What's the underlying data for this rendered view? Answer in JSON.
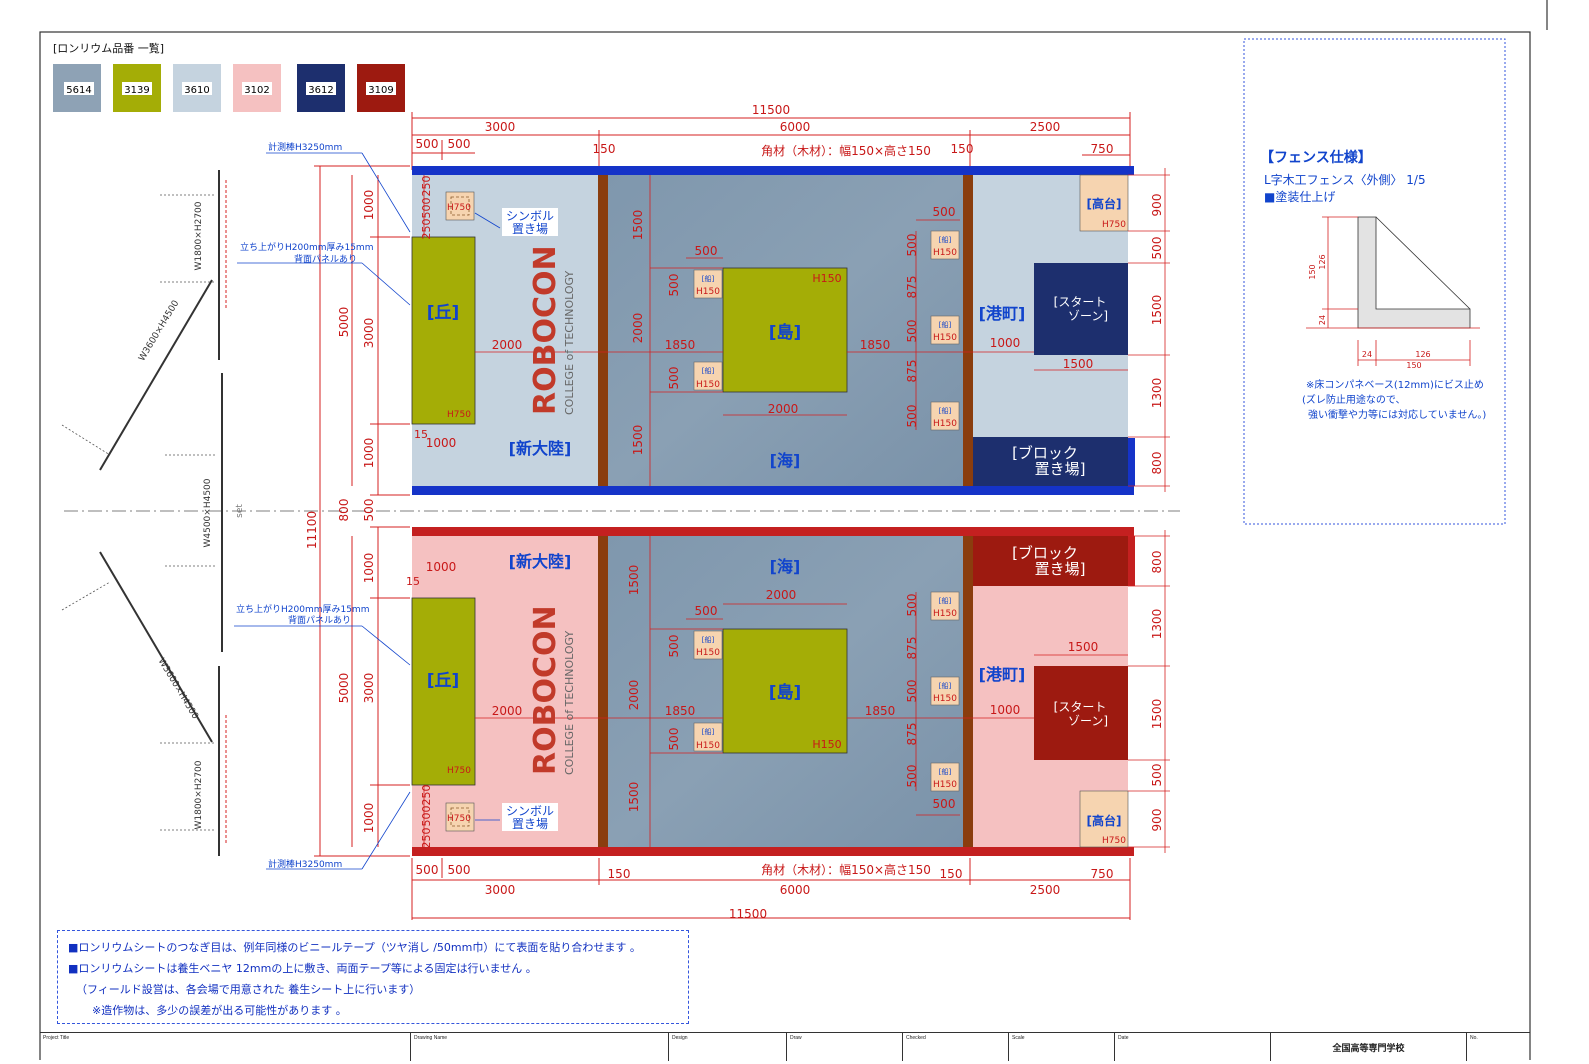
{
  "legend": {
    "title": "[ロンリウム品番 一覧]",
    "swatches": [
      {
        "code": "5614",
        "color": "#8ea2b5"
      },
      {
        "code": "3139",
        "color": "#a4ad06"
      },
      {
        "code": "3610",
        "color": "#c5d3df"
      },
      {
        "code": "3102",
        "color": "#f5c1c1"
      },
      {
        "code": "3612",
        "color": "#1d2f6e"
      },
      {
        "code": "3109",
        "color": "#9d1a10"
      }
    ]
  },
  "dimensions": {
    "total_width": "11500",
    "seg_3000": "3000",
    "seg_6000": "6000",
    "seg_2500": "2500",
    "d500a": "500",
    "d500b": "500",
    "d150": "150",
    "d150b": "150",
    "d750": "750",
    "timber": "角材（木材）：幅150×高さ150",
    "total_height": "11100",
    "left_5000": "5000",
    "left_1000": "1000",
    "left_3000": "3000",
    "left_800": "800",
    "left_500": "500",
    "d250": "250",
    "d2000": "2000",
    "d1850": "1850",
    "d1500": "1500",
    "d875": "875",
    "d900": "900",
    "d1300": "1300",
    "d15": "15"
  },
  "blue_field": {
    "hill": "[丘]",
    "hill_h": "H750",
    "new_continent": "[新大陸]",
    "sea": "[海]",
    "island": "[島]",
    "island_h": "H150",
    "port": "[港町]",
    "start_zone_1": "[スタート",
    "start_zone_2": "ゾーン]",
    "block_area_1": "[ブロック",
    "block_area_2": "置き場]",
    "plateau": "[高台]",
    "plateau_h": "H750",
    "symbol_1": "シンボル",
    "symbol_2": "置き場",
    "symbol_h": "H750",
    "ship": "[船]",
    "ship_h": "H150"
  },
  "annotations": {
    "measure_pole": "計測棒H3250mm",
    "riser_1": "立ち上がりH200mm厚み15mm",
    "riser_2": "背面パネルあり",
    "fence_a": "W1800×H2700",
    "fence_b": "W3600×H4500",
    "fence_c": "W4500×H4500",
    "set": "set"
  },
  "logo": {
    "text": "ROBOCON",
    "sub": "COLLEGE of TECHNOLOGY"
  },
  "fence_spec": {
    "title": "【フェンス仕様】",
    "line1": "L字木工フェンス〈外側〉 1/5",
    "line2": "■塗装仕上げ",
    "dim_150": "150",
    "dim_126": "126",
    "dim_24": "24",
    "dim_24b": "24",
    "dim_126b": "126",
    "dim_150b": "150",
    "note1": "※床コンパネベース(12mm)にビス止め",
    "note2": "(ズレ防止用途なので、",
    "note3": "強い衝撃や力等には対応していません。)"
  },
  "notes": {
    "n1": "■ロンリウムシートのつなぎ目は、例年同様のビニールテープ（ツヤ消し /50mm巾）にて表面を貼り合わせます 。",
    "n2": "■ロンリウムシートは養生ベニヤ 12mmの上に敷き、両面テープ等による固定は行いません 。",
    "n3": "（フィールド設営は、各会場で用意された 養生シート上に行います）",
    "n4": "※造作物は、多少の誤差が出る可能性があります 。"
  },
  "title_block": {
    "project_title": "Project Title",
    "drawing_name": "Drawing Name",
    "design": "Design",
    "draw": "Draw",
    "checked": "Checked",
    "scale": "Scale",
    "date": "Date",
    "org": "全国高等専門学校",
    "no": "No."
  }
}
